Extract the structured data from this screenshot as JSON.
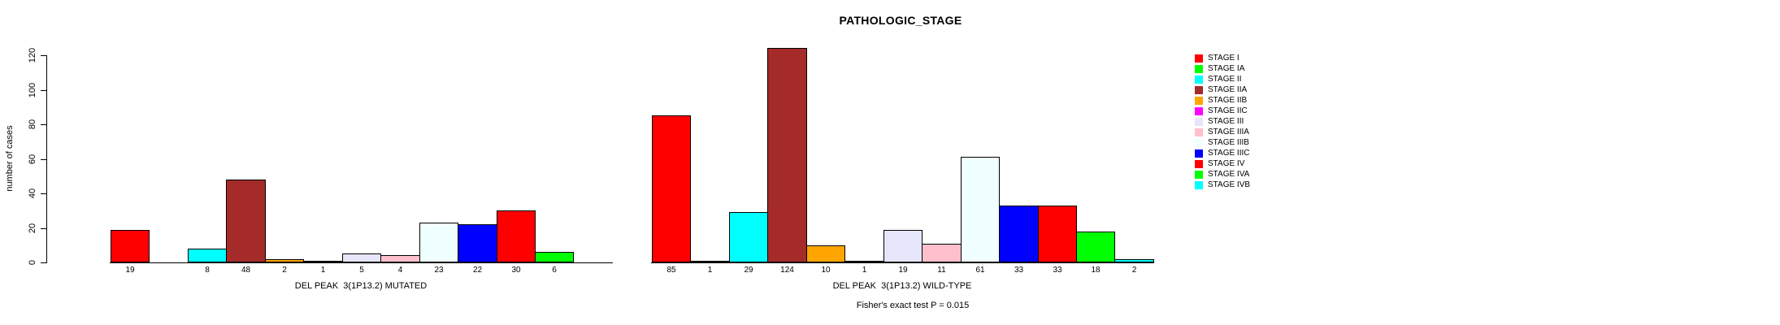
{
  "figure": {
    "title": "PATHOLOGIC_STAGE",
    "annotation": "Fisher's exact test P = 0.015"
  },
  "chart_data": {
    "type": "bar",
    "title": "PATHOLOGIC_STAGE",
    "ylabel": "number of cases",
    "xlabel_left": "DEL PEAK  3(1P13.2) MUTATED",
    "xlabel_right": "DEL PEAK  3(1P13.2) WILD-TYPE",
    "ylim": [
      0,
      130
    ],
    "yticks": [
      0,
      20,
      40,
      60,
      80,
      100,
      120
    ],
    "grid": false,
    "legend_position": "right-outside",
    "categories": [
      "STAGE I",
      "STAGE IA",
      "STAGE II",
      "STAGE IIA",
      "STAGE IIB",
      "STAGE IIC",
      "STAGE III",
      "STAGE IIIA",
      "STAGE IIIB",
      "STAGE IIIC",
      "STAGE IV",
      "STAGE IVA",
      "STAGE IVB"
    ],
    "category_colors": [
      "#FF0000",
      "#00FF00",
      "#00FFFF",
      "#A52A2A",
      "#FFA500",
      "#FF00FF",
      "#E6E6FA",
      "#FFC0CB",
      "#F0FFFF",
      "#0000FF",
      "#FF0000",
      "#00FF00",
      "#00FFFF"
    ],
    "series": [
      {
        "name": "DEL PEAK  3(1P13.2) MUTATED",
        "values": [
          19,
          0,
          8,
          48,
          2,
          1,
          5,
          4,
          23,
          22,
          30,
          6,
          0
        ]
      },
      {
        "name": "DEL PEAK  3(1P13.2) WILD-TYPE",
        "values": [
          85,
          1,
          29,
          124,
          10,
          1,
          19,
          11,
          61,
          33,
          33,
          18,
          2
        ]
      }
    ],
    "annotation": "Fisher's exact test P = 0.015"
  }
}
